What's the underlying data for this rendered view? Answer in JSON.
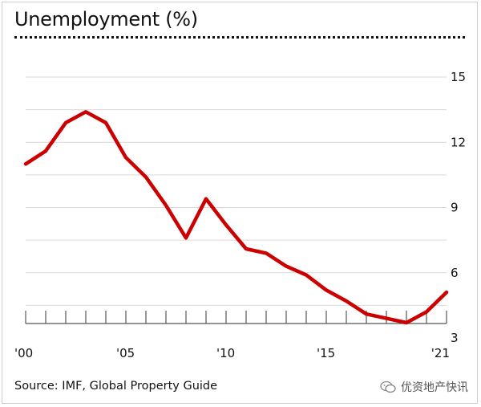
{
  "title": "Unemployment (%)",
  "source": "Source: IMF, Global Property Guide",
  "watermark": "优资地产快讯",
  "colors": {
    "line": "#cc0000",
    "grid": "#d9d9d9",
    "axis": "#555555"
  },
  "chart_data": {
    "type": "line",
    "title": "Unemployment (%)",
    "xlabel": "",
    "ylabel": "",
    "x": [
      2000,
      2001,
      2002,
      2003,
      2004,
      2005,
      2006,
      2007,
      2008,
      2009,
      2010,
      2011,
      2012,
      2013,
      2014,
      2015,
      2016,
      2017,
      2018,
      2019,
      2020,
      2021
    ],
    "series": [
      {
        "name": "Unemployment (%)",
        "values": [
          11.0,
          11.6,
          12.9,
          13.4,
          12.9,
          11.3,
          10.4,
          9.1,
          7.6,
          9.4,
          8.2,
          7.1,
          6.9,
          6.3,
          5.9,
          5.2,
          4.7,
          4.1,
          3.9,
          3.7,
          4.2,
          5.1
        ]
      }
    ],
    "xlim": [
      2000,
      2021
    ],
    "ylim": [
      3,
      15
    ],
    "yticks": [
      3,
      6,
      9,
      12,
      15
    ],
    "ytick_labels": [
      "3",
      "6",
      "9",
      "12",
      "15"
    ],
    "xtick_positions": [
      2000,
      2005,
      2010,
      2015,
      2021
    ],
    "xtick_labels": [
      "'00",
      "'05",
      "'10",
      "'15",
      "'21"
    ],
    "grid": true,
    "legend": "none",
    "yaxis_side": "right"
  }
}
